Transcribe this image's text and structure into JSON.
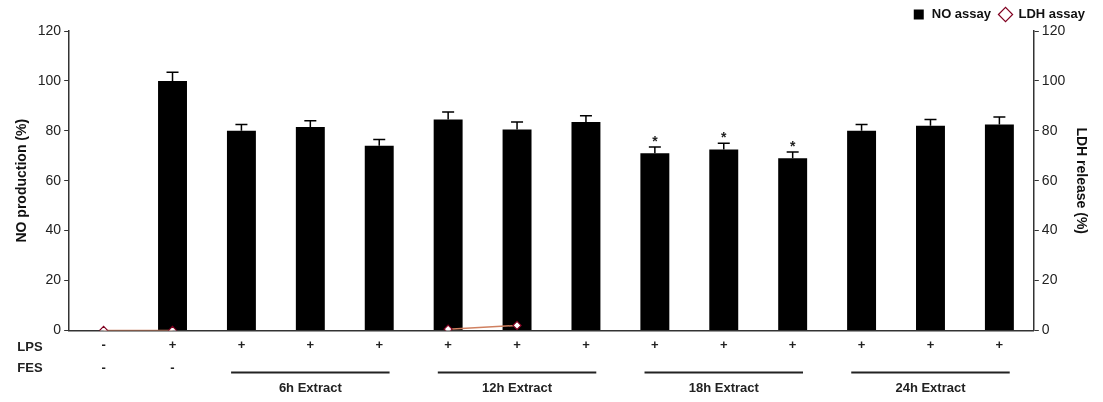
{
  "chart_data": {
    "type": "bar",
    "ylabel": "NO production (%)",
    "y2label": "LDH release (%)",
    "categories": [
      "-",
      "+",
      "+",
      "+",
      "+",
      "+",
      "+",
      "+",
      "+",
      "+",
      "+",
      "+",
      "+",
      "+"
    ],
    "series": [
      {
        "name": "NO assay",
        "color": "#000000",
        "values": [
          null,
          100,
          80,
          81.5,
          74,
          84.5,
          80.5,
          83.5,
          71,
          72.5,
          69,
          80,
          82,
          82.5
        ],
        "errors": [
          null,
          3.5,
          2.5,
          2.5,
          2.5,
          3,
          3,
          2.5,
          2.5,
          2.5,
          2.5,
          2.5,
          2.5,
          3
        ]
      },
      {
        "name": "LDH assay",
        "type": "line",
        "axis": "y2",
        "color": "#d08060",
        "marker": "diamond",
        "values": [
          0,
          0,
          null,
          null,
          null,
          0.5,
          2,
          null,
          null,
          null,
          null,
          null,
          null,
          null
        ]
      }
    ],
    "ylim": [
      0,
      120
    ],
    "yticks": [
      0,
      20,
      40,
      60,
      80,
      100,
      120
    ],
    "y2lim": [
      0,
      120
    ],
    "y2ticks": [
      0,
      20,
      40,
      60,
      80,
      100,
      120
    ],
    "grid": false,
    "legend": "top right",
    "annotations": [
      "LPS",
      "FES",
      "-",
      "-",
      "6h Extract",
      "12h Extract",
      "18h Extract",
      "24h Extract",
      "*",
      "*",
      "*"
    ]
  }
}
